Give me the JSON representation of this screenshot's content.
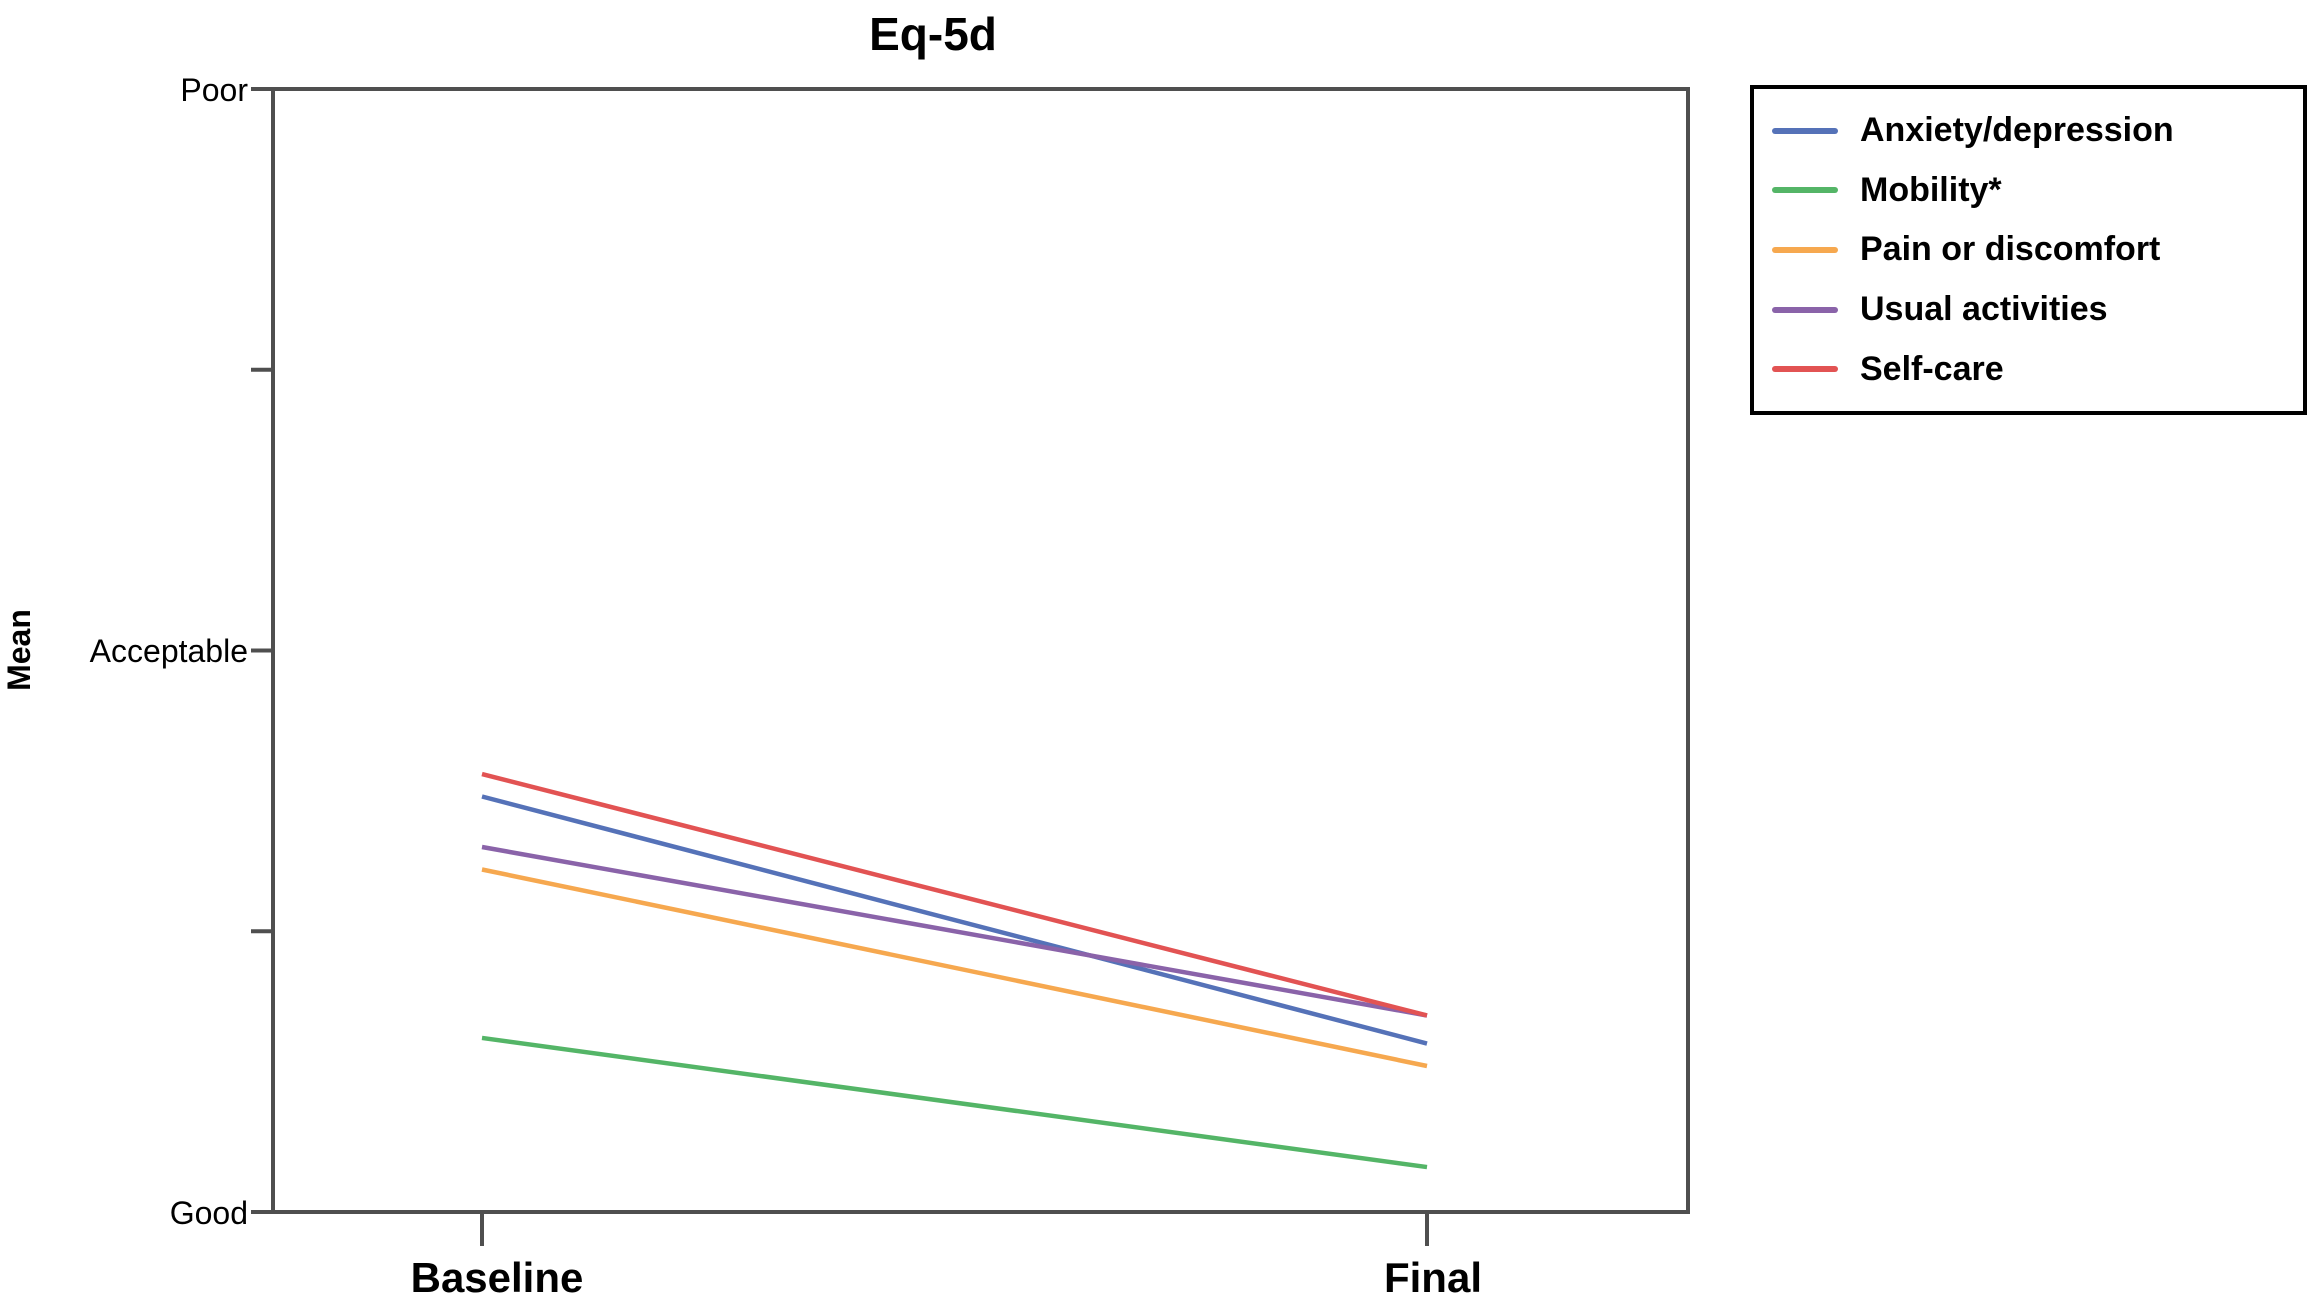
{
  "title": "Eq-5d",
  "y_axis": {
    "label": "Mean",
    "range": [
      0,
      2
    ],
    "ticks": [
      {
        "value": 0,
        "label": "Good"
      },
      {
        "value": 1,
        "label": "Acceptable"
      },
      {
        "value": 2,
        "label": "Poor"
      }
    ],
    "minor_ticks": [
      0.5,
      1.5
    ]
  },
  "x_axis": {
    "categories": [
      "Baseline",
      "Final"
    ]
  },
  "legend": {
    "items": [
      {
        "label": "Anxiety/depression",
        "color": "#5572b8"
      },
      {
        "label": "Mobility*",
        "color": "#54b567"
      },
      {
        "label": "Pain or discomfort",
        "color": "#f6a84f"
      },
      {
        "label": "Usual activities",
        "color": "#8a63a9"
      },
      {
        "label": "Self-care",
        "color": "#e25353"
      }
    ]
  },
  "chart_data": {
    "type": "line",
    "title": "Eq-5d",
    "xlabel": "",
    "ylabel": "Mean",
    "categories": [
      "Baseline",
      "Final"
    ],
    "series": [
      {
        "name": "Anxiety/depression",
        "color": "#5572b8",
        "values": [
          0.74,
          0.3
        ]
      },
      {
        "name": "Mobility*",
        "color": "#54b567",
        "values": [
          0.31,
          0.08
        ]
      },
      {
        "name": "Pain or discomfort",
        "color": "#f6a84f",
        "values": [
          0.61,
          0.26
        ]
      },
      {
        "name": "Usual activities",
        "color": "#8a63a9",
        "values": [
          0.65,
          0.35
        ]
      },
      {
        "name": "Self-care",
        "color": "#e25353",
        "values": [
          0.78,
          0.35
        ]
      }
    ],
    "ylim": [
      0,
      2
    ],
    "ytick_labels": [
      "Good",
      "Acceptable",
      "Poor"
    ],
    "yminor_ticks": [
      0.5,
      1.5
    ],
    "grid": false,
    "legend_position": "outside-top-right"
  },
  "colors": {
    "axis": "#4f4f4f",
    "text": "#000000",
    "background": "#ffffff",
    "legend_border": "#000000"
  }
}
